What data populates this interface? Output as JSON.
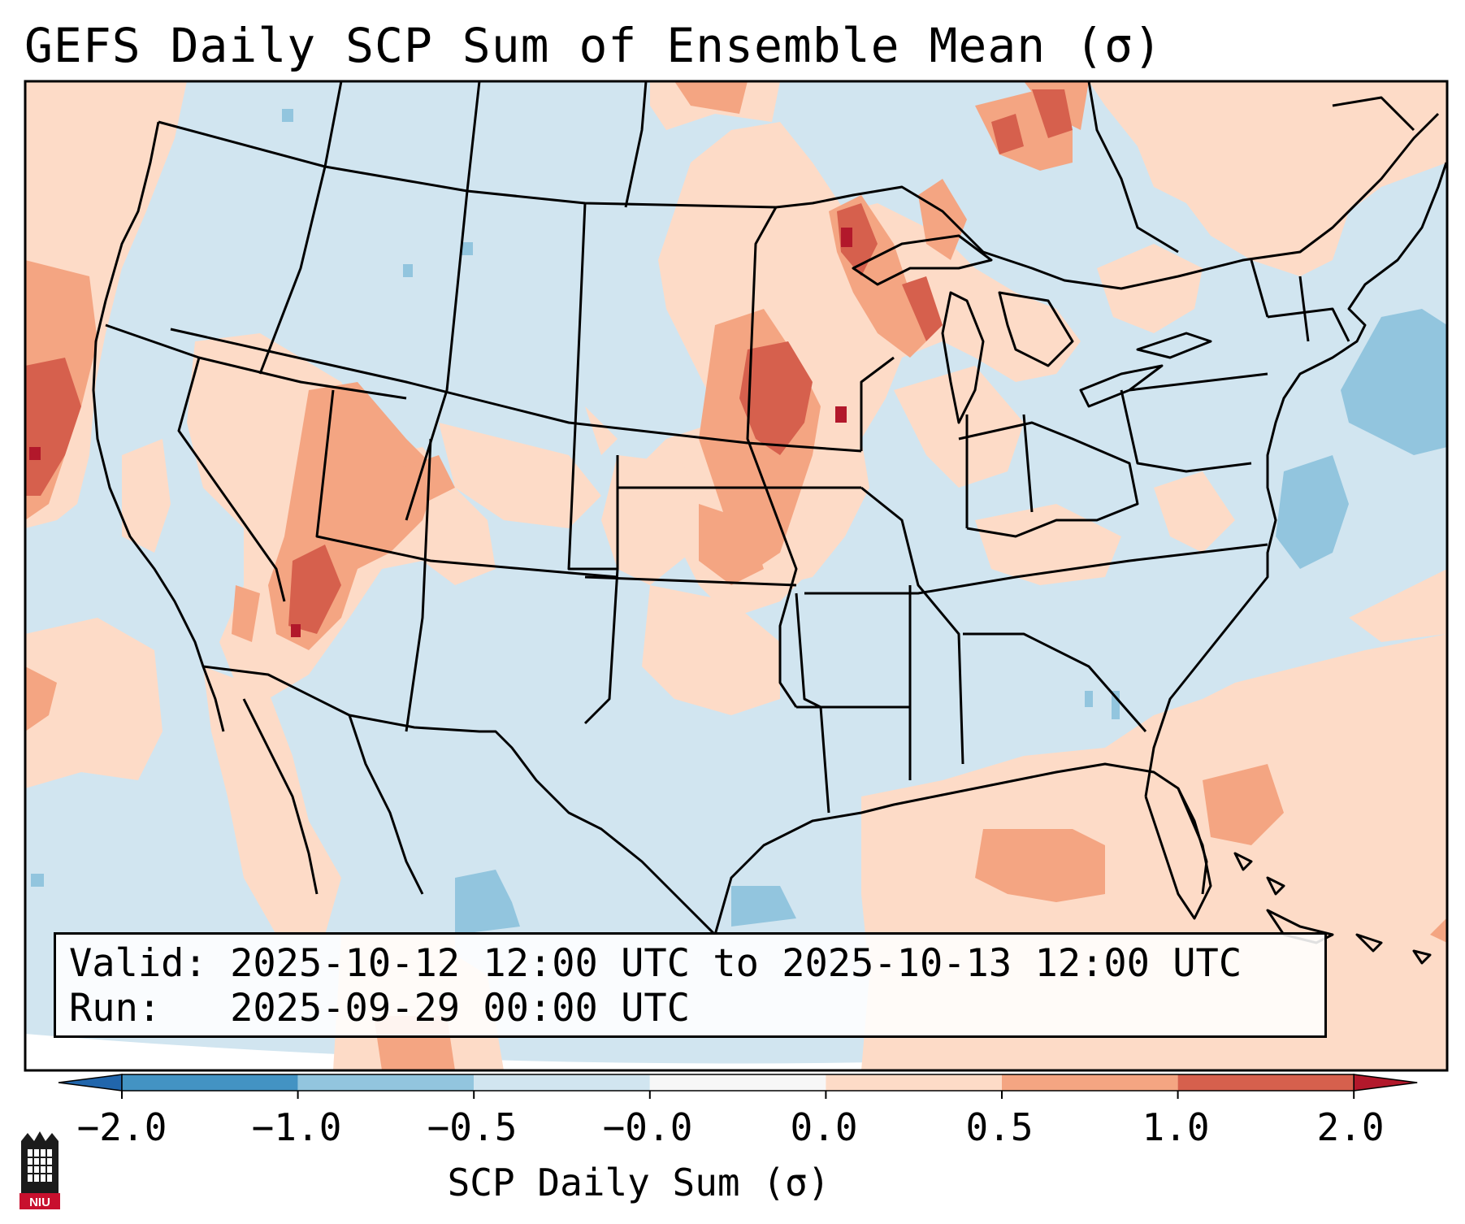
{
  "title": "GEFS Daily SCP Sum of Ensemble Mean (σ)",
  "info": {
    "valid_line": "Valid: 2025-10-12 12:00 UTC to 2025-10-13 12:00 UTC",
    "run_line": "Run:   2025-09-29 00:00 UTC"
  },
  "colorbar": {
    "label": "SCP Daily Sum (σ)",
    "ticks": [
      "−2.0",
      "−1.0",
      "−0.5",
      "−0.0",
      "0.0",
      "0.5",
      "1.0",
      "2.0"
    ],
    "bins": [
      {
        "range": "below -2.0",
        "color": "#2166ac"
      },
      {
        "range": "-2.0 to -1.0",
        "color": "#4393c3"
      },
      {
        "range": "-1.0 to -0.5",
        "color": "#92c5de"
      },
      {
        "range": "-0.5 to -0.0",
        "color": "#d1e5f0"
      },
      {
        "range": "-0.0 to 0.0",
        "color": "#f7f7f7"
      },
      {
        "range": "0.0 to 0.5",
        "color": "#fddbc7"
      },
      {
        "range": "0.5 to 1.0",
        "color": "#f4a582"
      },
      {
        "range": "1.0 to 2.0",
        "color": "#d6604d"
      },
      {
        "range": "above 2.0",
        "color": "#b2182b"
      }
    ]
  },
  "logo": {
    "text": "NIU",
    "color": "#c8102e"
  }
}
